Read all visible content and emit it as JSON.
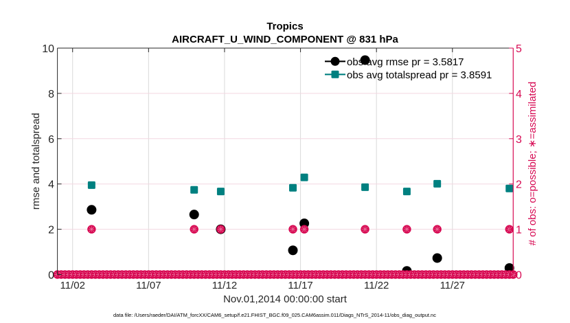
{
  "chart_data": {
    "type": "scatter",
    "title": "Tropics",
    "subtitle": "AIRCRAFT_U_WIND_COMPONENT @ 831 hPa",
    "xlabel": "Nov.01,2014 00:00:00 start",
    "ylabel": "rmse and totalspread",
    "ylabel_right": "# of obs: o=possible; ∗=assimilated",
    "x_units": "days since Nov.01,2014 00:00:00",
    "xlim": [
      0,
      30
    ],
    "ylim": [
      0,
      10
    ],
    "ylim_right": [
      0,
      5
    ],
    "grid": true,
    "x_ticks": [
      {
        "value": 1,
        "label": "11/02"
      },
      {
        "value": 6,
        "label": "11/07"
      },
      {
        "value": 11,
        "label": "11/12"
      },
      {
        "value": 16,
        "label": "11/17"
      },
      {
        "value": 21,
        "label": "11/22"
      },
      {
        "value": 26,
        "label": "11/27"
      }
    ],
    "y_ticks": [
      "0",
      "2",
      "4",
      "6",
      "8",
      "10"
    ],
    "y_ticks_right": [
      "0",
      "1",
      "2",
      "3",
      "4",
      "5"
    ],
    "legend": {
      "position": "top-right",
      "entries": [
        {
          "label": "obs avg rmse pr = 3.5817",
          "series": 0
        },
        {
          "label": "obs avg totalspread pr = 3.8591",
          "series": 1
        }
      ]
    },
    "series": [
      {
        "name": "obs avg rmse",
        "axis": "left",
        "marker": "circle",
        "color": "#000000",
        "x": [
          2.25,
          9.0,
          10.75,
          15.5,
          16.25,
          20.25,
          23.0,
          25.0,
          29.75
        ],
        "y": [
          2.86,
          2.65,
          2.0,
          1.07,
          2.26,
          9.47,
          0.16,
          0.73,
          0.29
        ]
      },
      {
        "name": "obs avg totalspread",
        "axis": "left",
        "marker": "square",
        "color": "#008080",
        "x": [
          2.25,
          9.0,
          10.75,
          15.5,
          16.25,
          20.25,
          23.0,
          25.0,
          29.75
        ],
        "y": [
          3.95,
          3.74,
          3.67,
          3.83,
          4.29,
          3.86,
          3.67,
          4.01,
          3.8
        ]
      }
    ],
    "obs_counts": {
      "axis": "right",
      "color": "#D70A53",
      "bin_start_day": 0,
      "bin_end_day": 30,
      "bin_step_day": 0.25,
      "default_count": 0,
      "nonzero": [
        {
          "x": 2.25,
          "possible": 1,
          "assimilated": 1
        },
        {
          "x": 9.0,
          "possible": 1,
          "assimilated": 1
        },
        {
          "x": 10.75,
          "possible": 1,
          "assimilated": 1
        },
        {
          "x": 15.5,
          "possible": 1,
          "assimilated": 1
        },
        {
          "x": 16.25,
          "possible": 1,
          "assimilated": 1
        },
        {
          "x": 20.25,
          "possible": 1,
          "assimilated": 1
        },
        {
          "x": 23.0,
          "possible": 1,
          "assimilated": 1
        },
        {
          "x": 25.0,
          "possible": 1,
          "assimilated": 1
        },
        {
          "x": 29.75,
          "possible": 1,
          "assimilated": 1
        }
      ]
    },
    "colors": {
      "right_axis": "#D70A53",
      "grid_vertical": "#d9d9d9",
      "grid_horizontal": "#f3d7e1"
    }
  },
  "footer": "data file: /Users/raeder/DAI/ATM_forcXX/CAM6_setup/f.e21.FHIST_BGC.f09_025.CAM6assim.011/Diags_NTrS_2014-11/obs_diag_output.nc"
}
